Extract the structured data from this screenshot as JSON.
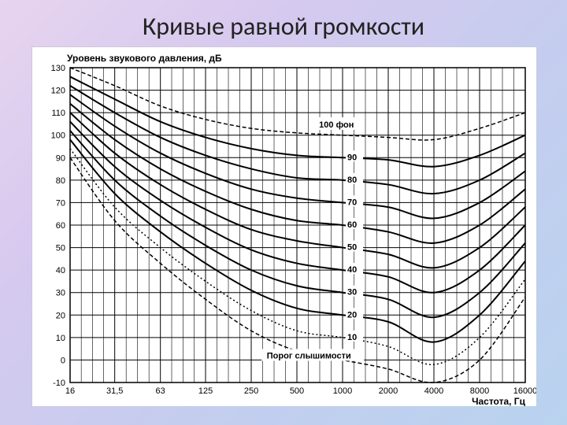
{
  "title": "Кривые равной громкости",
  "chart": {
    "type": "line",
    "background_color": "#ffffff",
    "grid_color": "#000000",
    "y_axis": {
      "label": "Уровень звукового давления, дБ",
      "min": -10,
      "max": 130,
      "ticks": [
        -10,
        0,
        10,
        20,
        30,
        40,
        50,
        60,
        70,
        80,
        90,
        100,
        110,
        120,
        130
      ],
      "label_fontsize": 12,
      "tick_fontsize": 11
    },
    "x_axis": {
      "label": "Частота, Гц",
      "scale": "log",
      "ticks": [
        16,
        31.5,
        63,
        125,
        250,
        500,
        1000,
        2000,
        4000,
        8000,
        16000
      ],
      "tick_labels": [
        "16",
        "31,5",
        "63",
        "125",
        "250",
        "500",
        "1000",
        "2000",
        "4000",
        "8000",
        "16000"
      ],
      "label_fontsize": 12,
      "tick_fontsize": 11,
      "minor_lines_per_div": 3
    },
    "annotations": {
      "top_curve": "100 фон",
      "bottom_curve": "Порог слышимости"
    },
    "series": [
      {
        "phon": 100,
        "style": "dashed",
        "x": [
          16,
          31.5,
          63,
          125,
          250,
          500,
          1000,
          2000,
          4000,
          8000,
          16000
        ],
        "y": [
          130,
          122,
          113,
          107,
          103,
          101,
          100,
          99,
          98,
          103,
          110
        ]
      },
      {
        "phon": 90,
        "style": "solid",
        "label": "90",
        "x": [
          16,
          31.5,
          63,
          125,
          250,
          500,
          1000,
          2000,
          4000,
          8000,
          16000
        ],
        "y": [
          126,
          116,
          106,
          99,
          94,
          91,
          90,
          89,
          86,
          91,
          100
        ]
      },
      {
        "phon": 80,
        "style": "solid",
        "label": "80",
        "x": [
          16,
          31.5,
          63,
          125,
          250,
          500,
          1000,
          2000,
          4000,
          8000,
          16000
        ],
        "y": [
          122,
          110,
          99,
          91,
          85,
          81,
          80,
          78,
          74,
          80,
          92
        ]
      },
      {
        "phon": 70,
        "style": "solid",
        "label": "70",
        "x": [
          16,
          31.5,
          63,
          125,
          250,
          500,
          1000,
          2000,
          4000,
          8000,
          16000
        ],
        "y": [
          118,
          104,
          92,
          83,
          76,
          72,
          70,
          68,
          63,
          70,
          84
        ]
      },
      {
        "phon": 60,
        "style": "solid",
        "label": "60",
        "x": [
          16,
          31.5,
          63,
          125,
          250,
          500,
          1000,
          2000,
          4000,
          8000,
          16000
        ],
        "y": [
          114,
          98,
          85,
          75,
          67,
          62,
          60,
          57,
          52,
          60,
          76
        ]
      },
      {
        "phon": 50,
        "style": "solid",
        "label": "50",
        "x": [
          16,
          31.5,
          63,
          125,
          250,
          500,
          1000,
          2000,
          4000,
          8000,
          16000
        ],
        "y": [
          110,
          92,
          78,
          67,
          58,
          53,
          50,
          47,
          41,
          50,
          68
        ]
      },
      {
        "phon": 40,
        "style": "solid",
        "label": "40",
        "x": [
          16,
          31.5,
          63,
          125,
          250,
          500,
          1000,
          2000,
          4000,
          8000,
          16000
        ],
        "y": [
          106,
          86,
          71,
          59,
          49,
          43,
          40,
          37,
          30,
          40,
          60
        ]
      },
      {
        "phon": 30,
        "style": "solid",
        "label": "30",
        "x": [
          16,
          31.5,
          63,
          125,
          250,
          500,
          1000,
          2000,
          4000,
          8000,
          16000
        ],
        "y": [
          102,
          80,
          64,
          51,
          40,
          33,
          30,
          27,
          19,
          30,
          52
        ]
      },
      {
        "phon": 20,
        "style": "solid",
        "label": "20",
        "x": [
          16,
          31.5,
          63,
          125,
          250,
          500,
          1000,
          2000,
          4000,
          8000,
          16000
        ],
        "y": [
          98,
          74,
          57,
          43,
          31,
          23,
          20,
          17,
          8,
          20,
          44
        ]
      },
      {
        "phon": 10,
        "style": "dotted",
        "label": "10",
        "x": [
          16,
          31.5,
          63,
          125,
          250,
          500,
          1000,
          2000,
          4000,
          8000,
          16000
        ],
        "y": [
          94,
          68,
          50,
          35,
          22,
          13,
          10,
          6,
          -2,
          10,
          36
        ]
      },
      {
        "phon": 0,
        "style": "dashed",
        "x": [
          16,
          31.5,
          63,
          125,
          250,
          500,
          1000,
          2000,
          4000,
          8000,
          16000
        ],
        "y": [
          90,
          62,
          43,
          27,
          13,
          4,
          0,
          -4,
          -10,
          0,
          28
        ]
      }
    ],
    "line_color": "#000000",
    "line_width_solid": 2,
    "line_width_dashed": 1.5
  }
}
